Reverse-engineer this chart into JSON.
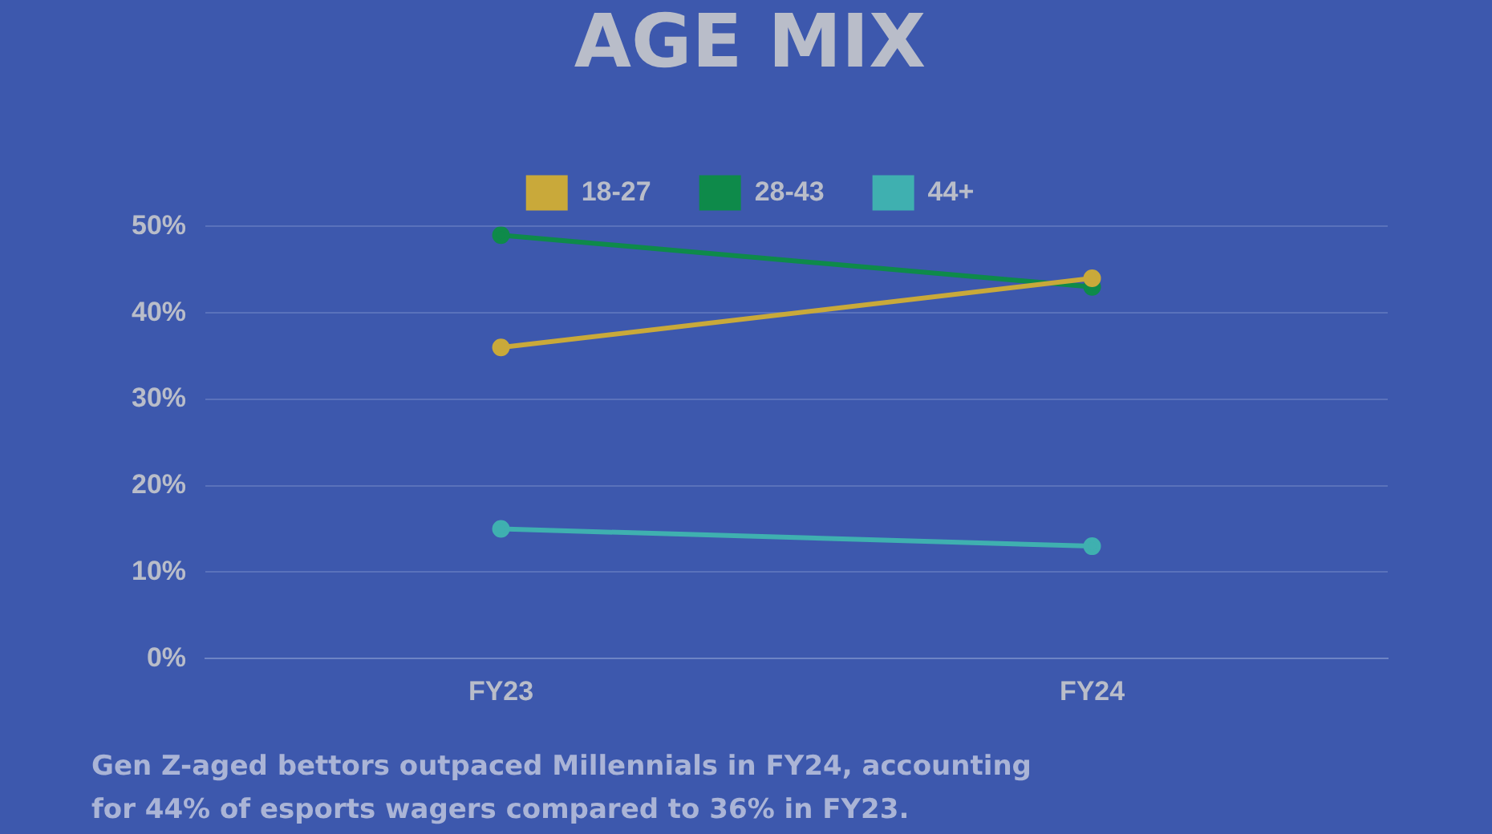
{
  "chart_data": {
    "type": "line",
    "title": "AGE MIX",
    "categories": [
      "FY23",
      "FY24"
    ],
    "series": [
      {
        "name": "18-27",
        "color": "#c9a93a",
        "values": [
          36,
          44
        ]
      },
      {
        "name": "28-43",
        "color": "#0e8a4a",
        "values": [
          49,
          43
        ]
      },
      {
        "name": "44+",
        "color": "#3fb0b0",
        "values": [
          15,
          13
        ]
      }
    ],
    "ylim": [
      0,
      50
    ],
    "yticks": [
      {
        "value": 0,
        "label": "0%"
      },
      {
        "value": 10,
        "label": "10%"
      },
      {
        "value": 20,
        "label": "20%"
      },
      {
        "value": 30,
        "label": "30%"
      },
      {
        "value": 40,
        "label": "40%"
      },
      {
        "value": 50,
        "label": "50%"
      }
    ],
    "grid": "y",
    "legend": "top",
    "marker": "circle",
    "line_style": "solid",
    "annotations": [
      "Gen Z-aged bettors outpaced Millennials in FY24, accounting for 44% of esports wagers compared to 36% in FY23."
    ]
  }
}
